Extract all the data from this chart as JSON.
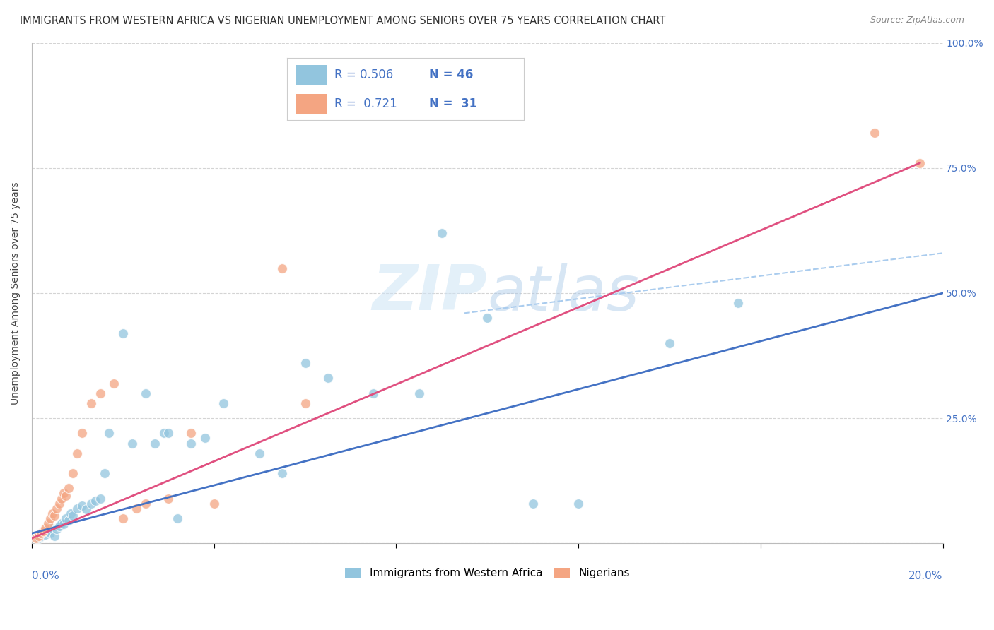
{
  "title": "IMMIGRANTS FROM WESTERN AFRICA VS NIGERIAN UNEMPLOYMENT AMONG SENIORS OVER 75 YEARS CORRELATION CHART",
  "source": "Source: ZipAtlas.com",
  "ylabel": "Unemployment Among Seniors over 75 years",
  "xlim": [
    0.0,
    20.0
  ],
  "ylim": [
    0.0,
    100.0
  ],
  "blue_color": "#92c5de",
  "pink_color": "#f4a582",
  "blue_scatter": [
    [
      0.15,
      1.0
    ],
    [
      0.2,
      1.5
    ],
    [
      0.25,
      2.0
    ],
    [
      0.3,
      1.8
    ],
    [
      0.35,
      2.5
    ],
    [
      0.4,
      2.0
    ],
    [
      0.45,
      3.0
    ],
    [
      0.5,
      1.5
    ],
    [
      0.55,
      2.8
    ],
    [
      0.6,
      3.5
    ],
    [
      0.65,
      4.0
    ],
    [
      0.7,
      3.8
    ],
    [
      0.75,
      5.0
    ],
    [
      0.8,
      4.5
    ],
    [
      0.85,
      6.0
    ],
    [
      0.9,
      5.5
    ],
    [
      1.0,
      7.0
    ],
    [
      1.1,
      7.5
    ],
    [
      1.2,
      6.8
    ],
    [
      1.3,
      8.0
    ],
    [
      1.4,
      8.5
    ],
    [
      1.5,
      9.0
    ],
    [
      1.6,
      14.0
    ],
    [
      1.7,
      22.0
    ],
    [
      2.0,
      42.0
    ],
    [
      2.2,
      20.0
    ],
    [
      2.5,
      30.0
    ],
    [
      2.7,
      20.0
    ],
    [
      2.9,
      22.0
    ],
    [
      3.0,
      22.0
    ],
    [
      3.2,
      5.0
    ],
    [
      3.5,
      20.0
    ],
    [
      3.8,
      21.0
    ],
    [
      4.2,
      28.0
    ],
    [
      5.0,
      18.0
    ],
    [
      5.5,
      14.0
    ],
    [
      6.0,
      36.0
    ],
    [
      6.5,
      33.0
    ],
    [
      7.5,
      30.0
    ],
    [
      8.5,
      30.0
    ],
    [
      9.0,
      62.0
    ],
    [
      10.0,
      45.0
    ],
    [
      11.0,
      8.0
    ],
    [
      12.0,
      8.0
    ],
    [
      14.0,
      40.0
    ],
    [
      15.5,
      48.0
    ]
  ],
  "pink_scatter": [
    [
      0.1,
      1.0
    ],
    [
      0.15,
      1.5
    ],
    [
      0.2,
      2.0
    ],
    [
      0.25,
      2.5
    ],
    [
      0.3,
      3.0
    ],
    [
      0.35,
      4.0
    ],
    [
      0.4,
      5.0
    ],
    [
      0.45,
      6.0
    ],
    [
      0.5,
      5.5
    ],
    [
      0.55,
      7.0
    ],
    [
      0.6,
      8.0
    ],
    [
      0.65,
      9.0
    ],
    [
      0.7,
      10.0
    ],
    [
      0.75,
      9.5
    ],
    [
      0.8,
      11.0
    ],
    [
      0.9,
      14.0
    ],
    [
      1.0,
      18.0
    ],
    [
      1.1,
      22.0
    ],
    [
      1.3,
      28.0
    ],
    [
      1.5,
      30.0
    ],
    [
      1.8,
      32.0
    ],
    [
      2.0,
      5.0
    ],
    [
      2.3,
      7.0
    ],
    [
      2.5,
      8.0
    ],
    [
      3.0,
      9.0
    ],
    [
      3.5,
      22.0
    ],
    [
      4.0,
      8.0
    ],
    [
      5.5,
      55.0
    ],
    [
      6.0,
      28.0
    ],
    [
      18.5,
      82.0
    ],
    [
      19.5,
      76.0
    ]
  ],
  "blue_line_pts": [
    [
      0.0,
      2.0
    ],
    [
      20.0,
      50.0
    ]
  ],
  "pink_line_pts": [
    [
      0.0,
      1.0
    ],
    [
      19.5,
      76.0
    ]
  ],
  "dashed_line_pts": [
    [
      9.5,
      46.0
    ],
    [
      20.0,
      58.0
    ]
  ],
  "watermark": "ZIPatlas",
  "background_color": "#ffffff",
  "grid_color": "#d0d0d0",
  "title_fontsize": 10.5,
  "source_fontsize": 9,
  "axis_label_fontsize": 10,
  "legend_fontsize": 12,
  "tick_fontsize": 10
}
